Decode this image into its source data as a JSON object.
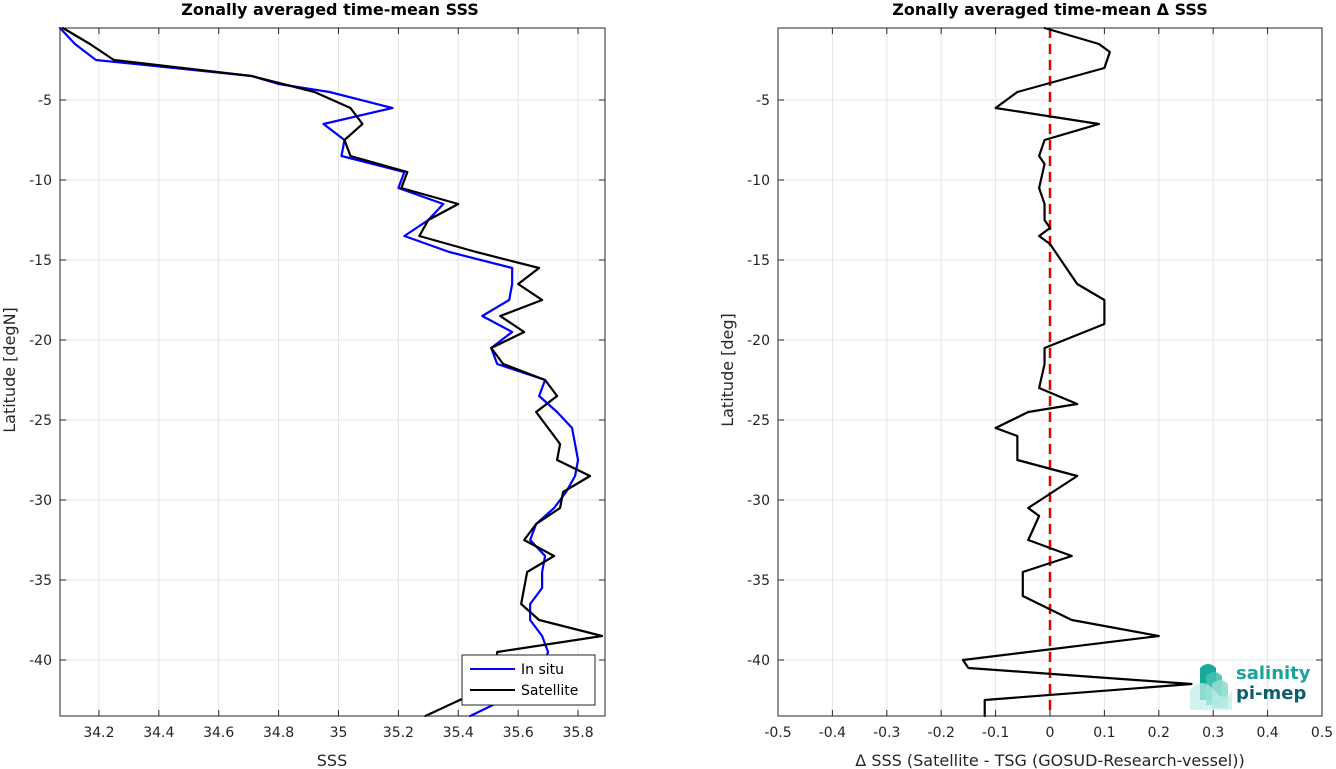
{
  "chart_data": [
    {
      "type": "line",
      "title": "Zonally averaged time-mean SSS",
      "xlabel": "SSS",
      "ylabel": "Latitude [degN]",
      "xlim": [
        34.07,
        35.89
      ],
      "ylim": [
        -43.5,
        -0.5
      ],
      "xticks": [
        34.2,
        34.4,
        34.6,
        34.8,
        35,
        35.2,
        35.4,
        35.6,
        35.8
      ],
      "yticks": [
        -5,
        -10,
        -15,
        -20,
        -25,
        -30,
        -35,
        -40
      ],
      "grid": true,
      "legend": "bottom-right",
      "series": [
        {
          "name": "In situ",
          "color": "#0000ff",
          "points": [
            [
              34.07,
              -0.5
            ],
            [
              34.12,
              -1.5
            ],
            [
              34.19,
              -2.5
            ],
            [
              34.71,
              -3.5
            ],
            [
              34.8,
              -4
            ],
            [
              34.97,
              -4.5
            ],
            [
              35.18,
              -5.5
            ],
            [
              34.95,
              -6.5
            ],
            [
              35.02,
              -7.5
            ],
            [
              35.01,
              -8.5
            ],
            [
              35.22,
              -9.5
            ],
            [
              35.2,
              -10.5
            ],
            [
              35.35,
              -11.5
            ],
            [
              35.3,
              -12.5
            ],
            [
              35.22,
              -13.5
            ],
            [
              35.37,
              -14.5
            ],
            [
              35.58,
              -15.5
            ],
            [
              35.58,
              -16.5
            ],
            [
              35.57,
              -17.5
            ],
            [
              35.48,
              -18.5
            ],
            [
              35.58,
              -19.5
            ],
            [
              35.51,
              -20.5
            ],
            [
              35.53,
              -21.5
            ],
            [
              35.69,
              -22.5
            ],
            [
              35.67,
              -23.5
            ],
            [
              35.73,
              -24.5
            ],
            [
              35.78,
              -25.5
            ],
            [
              35.79,
              -26.5
            ],
            [
              35.8,
              -27.5
            ],
            [
              35.79,
              -28.5
            ],
            [
              35.76,
              -29.5
            ],
            [
              35.72,
              -30.5
            ],
            [
              35.66,
              -31.5
            ],
            [
              35.64,
              -32.5
            ],
            [
              35.69,
              -33.5
            ],
            [
              35.68,
              -34.5
            ],
            [
              35.68,
              -35.5
            ],
            [
              35.64,
              -36.5
            ],
            [
              35.64,
              -37.5
            ],
            [
              35.68,
              -38.5
            ],
            [
              35.7,
              -39.5
            ],
            [
              35.66,
              -41.5
            ],
            [
              35.44,
              -43.5
            ]
          ]
        },
        {
          "name": "Satellite",
          "color": "#000000",
          "points": [
            [
              34.08,
              -0.5
            ],
            [
              34.17,
              -1.5
            ],
            [
              34.25,
              -2.5
            ],
            [
              34.71,
              -3.5
            ],
            [
              34.92,
              -4.5
            ],
            [
              35.04,
              -5.5
            ],
            [
              35.08,
              -6.5
            ],
            [
              35.02,
              -7.5
            ],
            [
              35.04,
              -8.5
            ],
            [
              35.23,
              -9.5
            ],
            [
              35.21,
              -10.5
            ],
            [
              35.4,
              -11.5
            ],
            [
              35.3,
              -12.5
            ],
            [
              35.27,
              -13.5
            ],
            [
              35.46,
              -14.5
            ],
            [
              35.67,
              -15.5
            ],
            [
              35.6,
              -16.5
            ],
            [
              35.68,
              -17.5
            ],
            [
              35.54,
              -18.5
            ],
            [
              35.62,
              -19.5
            ],
            [
              35.51,
              -20.5
            ],
            [
              35.55,
              -21.5
            ],
            [
              35.69,
              -22.5
            ],
            [
              35.73,
              -23.5
            ],
            [
              35.66,
              -24.5
            ],
            [
              35.7,
              -25.5
            ],
            [
              35.74,
              -26.5
            ],
            [
              35.73,
              -27.5
            ],
            [
              35.84,
              -28.5
            ],
            [
              35.75,
              -29.5
            ],
            [
              35.74,
              -30.5
            ],
            [
              35.66,
              -31.5
            ],
            [
              35.62,
              -32.5
            ],
            [
              35.72,
              -33.5
            ],
            [
              35.63,
              -34.5
            ],
            [
              35.62,
              -35.5
            ],
            [
              35.61,
              -36.5
            ],
            [
              35.67,
              -37.5
            ],
            [
              35.88,
              -38.5
            ],
            [
              35.53,
              -39.5
            ],
            [
              35.52,
              -41.5
            ],
            [
              35.29,
              -43.5
            ]
          ]
        }
      ]
    },
    {
      "type": "line",
      "title": "Zonally averaged time-mean Δ SSS",
      "xlabel": "Δ SSS (Satellite - TSG (GOSUD-Research-vessel))",
      "ylabel": "Latitude [deg]",
      "xlim": [
        -0.5,
        0.5
      ],
      "ylim": [
        -43.5,
        -0.5
      ],
      "xticks": [
        -0.5,
        -0.4,
        -0.3,
        -0.2,
        -0.1,
        0,
        0.1,
        0.2,
        0.3,
        0.4,
        0.5
      ],
      "yticks": [
        -5,
        -10,
        -15,
        -20,
        -25,
        -30,
        -35,
        -40
      ],
      "grid": true,
      "reference_line": {
        "x": 0,
        "color": "#e60000",
        "style": "dashed"
      },
      "series": [
        {
          "color": "#000000",
          "points": [
            [
              -0.01,
              -0.5
            ],
            [
              0.09,
              -1.5
            ],
            [
              0.11,
              -2
            ],
            [
              0.1,
              -3
            ],
            [
              -0.06,
              -4.5
            ],
            [
              -0.1,
              -5.5
            ],
            [
              0.09,
              -6.5
            ],
            [
              -0.01,
              -7.5
            ],
            [
              -0.02,
              -8.5
            ],
            [
              -0.01,
              -9
            ],
            [
              -0.02,
              -10.5
            ],
            [
              -0.01,
              -11.5
            ],
            [
              -0.01,
              -12.5
            ],
            [
              0.0,
              -13
            ],
            [
              -0.02,
              -13.5
            ],
            [
              0.0,
              -14
            ],
            [
              0.05,
              -16.5
            ],
            [
              0.1,
              -17.5
            ],
            [
              0.1,
              -19
            ],
            [
              -0.01,
              -20.5
            ],
            [
              -0.01,
              -21.5
            ],
            [
              -0.02,
              -23
            ],
            [
              0.05,
              -24
            ],
            [
              -0.04,
              -24.5
            ],
            [
              -0.1,
              -25.5
            ],
            [
              -0.06,
              -26
            ],
            [
              -0.06,
              -27.5
            ],
            [
              0.05,
              -28.5
            ],
            [
              -0.04,
              -30.5
            ],
            [
              -0.02,
              -31
            ],
            [
              -0.04,
              -32.5
            ],
            [
              0.04,
              -33.5
            ],
            [
              -0.05,
              -34.5
            ],
            [
              -0.05,
              -36
            ],
            [
              0.04,
              -37.5
            ],
            [
              0.2,
              -38.5
            ],
            [
              -0.16,
              -40
            ],
            [
              -0.15,
              -40.5
            ],
            [
              0.26,
              -41.5
            ],
            [
              -0.12,
              -42.5
            ],
            [
              -0.12,
              -43.5
            ]
          ]
        }
      ]
    }
  ],
  "legend": {
    "items": [
      "In situ",
      "Satellite"
    ]
  },
  "logo": {
    "line1": "salinity",
    "line2": "pi-mep"
  }
}
